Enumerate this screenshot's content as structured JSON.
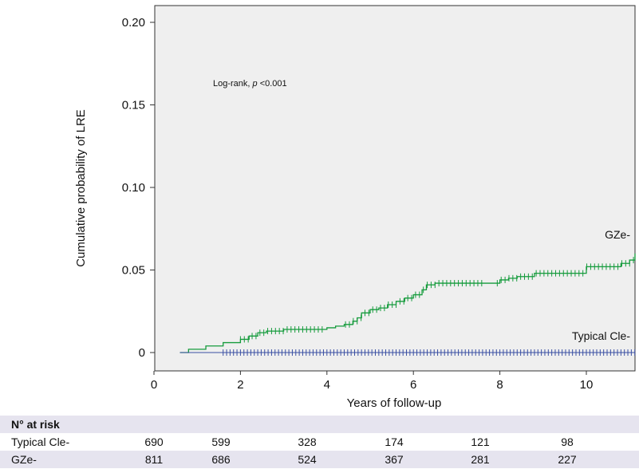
{
  "chart_data": {
    "type": "line",
    "title": "",
    "xlabel": "Years of follow-up",
    "ylabel": "Cumulative probability of LRE",
    "xlim": [
      0,
      11.5
    ],
    "ylim": [
      0,
      0.2
    ],
    "x_ticks": [
      "0",
      "2",
      "4",
      "6",
      "8",
      "10"
    ],
    "y_ticks": [
      "0",
      "0.05",
      "0.10",
      "0.15",
      "0.20"
    ],
    "annotation": {
      "prefix": "Log-rank, ",
      "italic": "p",
      "suffix": " <0.001"
    },
    "background": "#efefef",
    "series": [
      {
        "name": "GZe-",
        "color": "#159b3c",
        "x": [
          0,
          0.6,
          0.8,
          1.2,
          1.6,
          2.0,
          2.2,
          2.4,
          2.6,
          3.0,
          3.5,
          4.0,
          4.2,
          4.4,
          4.6,
          4.7,
          4.8,
          5.0,
          5.2,
          5.4,
          5.6,
          5.8,
          6.0,
          6.2,
          6.3,
          6.5,
          6.8,
          7.2,
          7.6,
          8.0,
          8.2,
          8.4,
          8.8,
          9.2,
          9.6,
          10.0,
          10.4,
          10.8,
          11.0,
          11.3,
          11.5
        ],
        "y": [
          0,
          0,
          0.002,
          0.004,
          0.006,
          0.008,
          0.01,
          0.012,
          0.013,
          0.014,
          0.014,
          0.015,
          0.016,
          0.017,
          0.019,
          0.021,
          0.024,
          0.026,
          0.027,
          0.029,
          0.031,
          0.033,
          0.035,
          0.038,
          0.041,
          0.042,
          0.042,
          0.042,
          0.042,
          0.044,
          0.045,
          0.046,
          0.048,
          0.048,
          0.048,
          0.052,
          0.052,
          0.054,
          0.056,
          0.06,
          0.06
        ],
        "label": "GZe-"
      },
      {
        "name": "Typical Cle-",
        "color": "#3a4fa3",
        "x": [
          0,
          11.5
        ],
        "y": [
          0,
          0
        ],
        "label": "Typical Cle-"
      }
    ],
    "risk_table": {
      "title": "N° at risk",
      "times": [
        0,
        2,
        4,
        6,
        8,
        10
      ],
      "rows": [
        {
          "label": "Typical Cle-",
          "values": [
            "690",
            "599",
            "328",
            "174",
            "121",
            "98"
          ]
        },
        {
          "label": "GZe-",
          "values": [
            "811",
            "686",
            "524",
            "367",
            "281",
            "227"
          ]
        }
      ]
    }
  }
}
